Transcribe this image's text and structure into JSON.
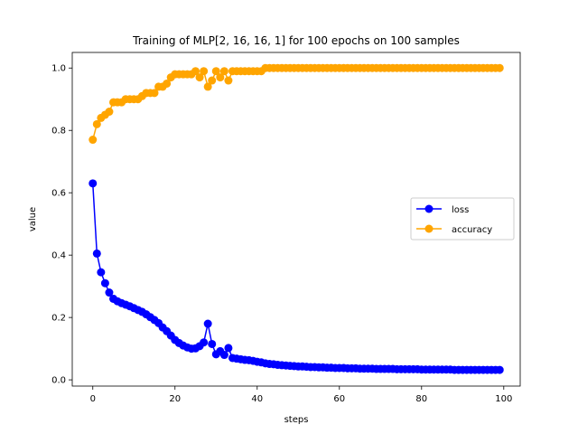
{
  "chart_data": {
    "type": "line",
    "title": "Training of MLP[2, 16, 16, 1] for 100 epochs on 100 samples",
    "xlabel": "steps",
    "ylabel": "value",
    "xlim": [
      -5,
      104
    ],
    "ylim": [
      -0.02,
      1.05
    ],
    "xticks": [
      0,
      20,
      40,
      60,
      80,
      100
    ],
    "yticks": [
      0.0,
      0.2,
      0.4,
      0.6,
      0.8,
      1.0
    ],
    "xtick_labels": [
      "0",
      "20",
      "40",
      "60",
      "80",
      "100"
    ],
    "ytick_labels": [
      "0.0",
      "0.2",
      "0.4",
      "0.6",
      "0.8",
      "1.0"
    ],
    "grid": false,
    "legend_position": "center-right",
    "x": [
      0,
      1,
      2,
      3,
      4,
      5,
      6,
      7,
      8,
      9,
      10,
      11,
      12,
      13,
      14,
      15,
      16,
      17,
      18,
      19,
      20,
      21,
      22,
      23,
      24,
      25,
      26,
      27,
      28,
      29,
      30,
      31,
      32,
      33,
      34,
      35,
      36,
      37,
      38,
      39,
      40,
      41,
      42,
      43,
      44,
      45,
      46,
      47,
      48,
      49,
      50,
      51,
      52,
      53,
      54,
      55,
      56,
      57,
      58,
      59,
      60,
      61,
      62,
      63,
      64,
      65,
      66,
      67,
      68,
      69,
      70,
      71,
      72,
      73,
      74,
      75,
      76,
      77,
      78,
      79,
      80,
      81,
      82,
      83,
      84,
      85,
      86,
      87,
      88,
      89,
      90,
      91,
      92,
      93,
      94,
      95,
      96,
      97,
      98,
      99
    ],
    "series": [
      {
        "name": "loss",
        "color": "#0000ff",
        "values": [
          0.63,
          0.405,
          0.345,
          0.31,
          0.28,
          0.26,
          0.252,
          0.246,
          0.241,
          0.236,
          0.23,
          0.224,
          0.218,
          0.21,
          0.201,
          0.192,
          0.182,
          0.168,
          0.156,
          0.142,
          0.128,
          0.118,
          0.11,
          0.104,
          0.1,
          0.101,
          0.108,
          0.12,
          0.18,
          0.115,
          0.082,
          0.092,
          0.08,
          0.102,
          0.07,
          0.068,
          0.066,
          0.064,
          0.063,
          0.061,
          0.058,
          0.056,
          0.053,
          0.051,
          0.05,
          0.048,
          0.047,
          0.046,
          0.045,
          0.044,
          0.043,
          0.043,
          0.042,
          0.041,
          0.041,
          0.04,
          0.04,
          0.039,
          0.039,
          0.038,
          0.038,
          0.038,
          0.037,
          0.037,
          0.037,
          0.036,
          0.036,
          0.036,
          0.036,
          0.035,
          0.035,
          0.035,
          0.035,
          0.035,
          0.034,
          0.034,
          0.034,
          0.034,
          0.034,
          0.034,
          0.033,
          0.033,
          0.033,
          0.033,
          0.033,
          0.033,
          0.033,
          0.033,
          0.032,
          0.032,
          0.032,
          0.032,
          0.032,
          0.032,
          0.032,
          0.032,
          0.032,
          0.032,
          0.032,
          0.032
        ]
      },
      {
        "name": "accuracy",
        "color": "#ffa500",
        "values": [
          0.77,
          0.82,
          0.84,
          0.85,
          0.86,
          0.89,
          0.89,
          0.89,
          0.9,
          0.9,
          0.9,
          0.9,
          0.91,
          0.92,
          0.92,
          0.92,
          0.94,
          0.94,
          0.95,
          0.97,
          0.98,
          0.98,
          0.98,
          0.98,
          0.98,
          0.99,
          0.97,
          0.99,
          0.94,
          0.96,
          0.99,
          0.97,
          0.99,
          0.96,
          0.99,
          0.99,
          0.99,
          0.99,
          0.99,
          0.99,
          0.99,
          0.99,
          1.0,
          1.0,
          1.0,
          1.0,
          1.0,
          1.0,
          1.0,
          1.0,
          1.0,
          1.0,
          1.0,
          1.0,
          1.0,
          1.0,
          1.0,
          1.0,
          1.0,
          1.0,
          1.0,
          1.0,
          1.0,
          1.0,
          1.0,
          1.0,
          1.0,
          1.0,
          1.0,
          1.0,
          1.0,
          1.0,
          1.0,
          1.0,
          1.0,
          1.0,
          1.0,
          1.0,
          1.0,
          1.0,
          1.0,
          1.0,
          1.0,
          1.0,
          1.0,
          1.0,
          1.0,
          1.0,
          1.0,
          1.0,
          1.0,
          1.0,
          1.0,
          1.0,
          1.0,
          1.0,
          1.0,
          1.0,
          1.0,
          1.0
        ]
      }
    ]
  }
}
